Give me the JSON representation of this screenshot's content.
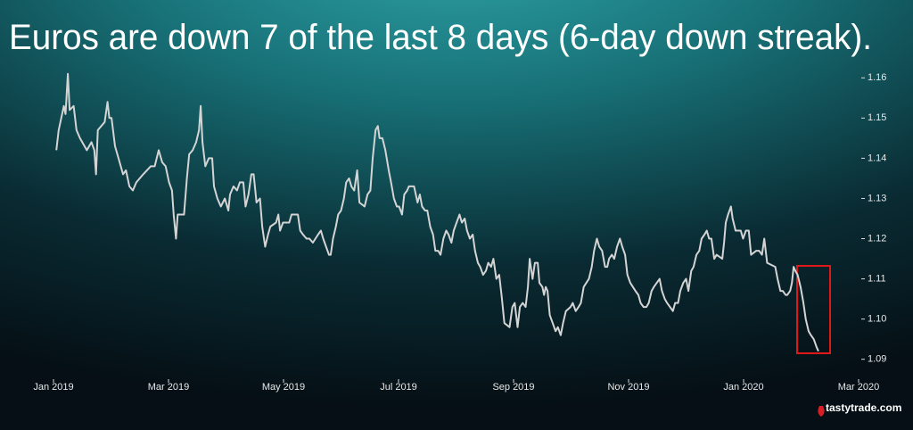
{
  "chart_data": {
    "type": "line",
    "title": "Euros are down 7 of the last 8 days (6-day down streak).",
    "logo": "tastytrade.com",
    "color": "#d4d4d4",
    "xlim": [
      0,
      14
    ],
    "xticks": [
      {
        "value": 0,
        "label": "Jan 2019"
      },
      {
        "value": 2,
        "label": "Mar 2019"
      },
      {
        "value": 4,
        "label": "May 2019"
      },
      {
        "value": 6,
        "label": "Jul 2019"
      },
      {
        "value": 8,
        "label": "Sep 2019"
      },
      {
        "value": 10,
        "label": "Nov 2019"
      },
      {
        "value": 12,
        "label": "Jan 2020"
      },
      {
        "value": 14,
        "label": "Mar 2020"
      }
    ],
    "ylim": [
      1.0875,
      1.1625
    ],
    "yticks": [
      1.09,
      {
        "value": 1.1,
        "label": "1.10"
      },
      1.11,
      1.12,
      1.13,
      1.14,
      1.15,
      1.16
    ],
    "x": [
      0.05,
      0.09,
      0.18,
      0.21,
      0.25,
      0.28,
      0.35,
      0.4,
      0.46,
      0.58,
      0.66,
      0.71,
      0.74,
      0.77,
      0.89,
      0.94,
      0.97,
      1.01,
      1.07,
      1.13,
      1.21,
      1.26,
      1.32,
      1.38,
      1.44,
      1.56,
      1.69,
      1.76,
      1.83,
      1.89,
      1.95,
      2.01,
      2.06,
      2.09,
      2.13,
      2.16,
      2.27,
      2.32,
      2.36,
      2.42,
      2.48,
      2.53,
      2.56,
      2.59,
      2.64,
      2.7,
      2.76,
      2.79,
      2.85,
      2.91,
      2.98,
      3.04,
      3.07,
      3.13,
      3.19,
      3.24,
      3.3,
      3.34,
      3.39,
      3.44,
      3.48,
      3.53,
      3.59,
      3.63,
      3.68,
      3.73,
      3.77,
      3.87,
      3.91,
      3.94,
      3.99,
      4.1,
      4.14,
      4.25,
      4.29,
      4.34,
      4.4,
      4.45,
      4.51,
      4.6,
      4.65,
      4.69,
      4.74,
      4.79,
      4.82,
      4.86,
      4.91,
      4.95,
      5.0,
      5.05,
      5.09,
      5.14,
      5.18,
      5.23,
      5.28,
      5.32,
      5.41,
      5.46,
      5.51,
      5.55,
      5.6,
      5.64,
      5.67,
      5.72,
      5.77,
      5.83,
      5.87,
      5.92,
      5.97,
      6.01,
      6.06,
      6.1,
      6.15,
      6.18,
      6.27,
      6.33,
      6.37,
      6.41,
      6.46,
      6.5,
      6.55,
      6.6,
      6.64,
      6.69,
      6.73,
      6.78,
      6.83,
      6.87,
      6.92,
      6.96,
      7.01,
      7.06,
      7.1,
      7.15,
      7.19,
      7.24,
      7.29,
      7.33,
      7.38,
      7.42,
      7.47,
      7.52,
      7.56,
      7.61,
      7.65,
      7.7,
      7.75,
      7.79,
      7.84,
      7.93,
      7.98,
      8.02,
      8.07,
      8.11,
      8.16,
      8.21,
      8.25,
      8.28,
      8.33,
      8.37,
      8.42,
      8.45,
      8.5,
      8.53,
      8.56,
      8.59,
      8.63,
      8.68,
      8.73,
      8.77,
      8.82,
      8.86,
      8.91,
      8.99,
      9.03,
      9.08,
      9.13,
      9.17,
      9.22,
      9.31,
      9.36,
      9.4,
      9.45,
      9.49,
      9.54,
      9.59,
      9.63,
      9.66,
      9.71,
      9.75,
      9.8,
      9.85,
      9.89,
      9.94,
      9.98,
      10.03,
      10.12,
      10.17,
      10.21,
      10.26,
      10.31,
      10.35,
      10.4,
      10.44,
      10.54,
      10.58,
      10.63,
      10.67,
      10.77,
      10.81,
      10.86,
      10.9,
      10.95,
      11.0,
      11.04,
      11.09,
      11.13,
      11.18,
      11.23,
      11.27,
      11.32,
      11.36,
      11.4,
      11.44,
      11.49,
      11.53,
      11.63,
      11.66,
      11.69,
      11.73,
      11.78,
      11.81,
      11.86,
      11.95,
      11.99,
      12.04,
      12.09,
      12.13,
      12.22,
      12.27,
      12.32,
      12.36,
      12.41,
      12.55,
      12.59,
      12.64,
      12.68,
      12.73,
      12.76,
      12.81,
      12.84,
      12.87,
      12.9,
      12.94,
      12.99,
      13.04,
      13.08,
      13.13,
      13.17,
      13.22,
      13.27,
      13.3
    ],
    "values": [
      1.142,
      1.147,
      1.153,
      1.151,
      1.161,
      1.152,
      1.153,
      1.147,
      1.145,
      1.142,
      1.144,
      1.142,
      1.136,
      1.147,
      1.149,
      1.154,
      1.15,
      1.15,
      1.143,
      1.14,
      1.136,
      1.137,
      1.133,
      1.132,
      1.134,
      1.136,
      1.138,
      1.138,
      1.142,
      1.139,
      1.138,
      1.134,
      1.132,
      1.126,
      1.12,
      1.126,
      1.126,
      1.135,
      1.141,
      1.142,
      1.144,
      1.147,
      1.153,
      1.144,
      1.138,
      1.14,
      1.14,
      1.133,
      1.13,
      1.128,
      1.13,
      1.127,
      1.131,
      1.133,
      1.132,
      1.134,
      1.134,
      1.128,
      1.131,
      1.136,
      1.136,
      1.129,
      1.13,
      1.123,
      1.118,
      1.121,
      1.123,
      1.124,
      1.126,
      1.122,
      1.124,
      1.124,
      1.126,
      1.126,
      1.122,
      1.121,
      1.12,
      1.12,
      1.119,
      1.121,
      1.122,
      1.12,
      1.118,
      1.116,
      1.116,
      1.12,
      1.123,
      1.126,
      1.127,
      1.13,
      1.134,
      1.135,
      1.133,
      1.132,
      1.137,
      1.129,
      1.128,
      1.131,
      1.132,
      1.14,
      1.147,
      1.148,
      1.145,
      1.145,
      1.142,
      1.137,
      1.134,
      1.13,
      1.128,
      1.128,
      1.126,
      1.131,
      1.132,
      1.133,
      1.133,
      1.129,
      1.131,
      1.128,
      1.127,
      1.127,
      1.123,
      1.121,
      1.117,
      1.117,
      1.116,
      1.12,
      1.122,
      1.121,
      1.119,
      1.122,
      1.124,
      1.126,
      1.124,
      1.125,
      1.122,
      1.12,
      1.121,
      1.117,
      1.114,
      1.113,
      1.111,
      1.112,
      1.114,
      1.113,
      1.115,
      1.11,
      1.111,
      1.106,
      1.099,
      1.098,
      1.103,
      1.104,
      1.098,
      1.103,
      1.104,
      1.103,
      1.108,
      1.115,
      1.11,
      1.114,
      1.114,
      1.109,
      1.108,
      1.106,
      1.108,
      1.107,
      1.101,
      1.099,
      1.097,
      1.098,
      1.096,
      1.099,
      1.102,
      1.103,
      1.104,
      1.102,
      1.103,
      1.104,
      1.108,
      1.11,
      1.113,
      1.117,
      1.12,
      1.118,
      1.117,
      1.113,
      1.113,
      1.115,
      1.116,
      1.115,
      1.118,
      1.12,
      1.118,
      1.116,
      1.111,
      1.109,
      1.107,
      1.106,
      1.104,
      1.103,
      1.103,
      1.104,
      1.107,
      1.108,
      1.11,
      1.107,
      1.105,
      1.104,
      1.102,
      1.104,
      1.104,
      1.107,
      1.109,
      1.11,
      1.107,
      1.112,
      1.113,
      1.116,
      1.117,
      1.12,
      1.121,
      1.122,
      1.12,
      1.12,
      1.115,
      1.116,
      1.115,
      1.119,
      1.124,
      1.126,
      1.128,
      1.125,
      1.122,
      1.122,
      1.12,
      1.122,
      1.122,
      1.116,
      1.117,
      1.117,
      1.116,
      1.12,
      1.114,
      1.113,
      1.11,
      1.107,
      1.107,
      1.106,
      1.106,
      1.107,
      1.109,
      1.113,
      1.112,
      1.111,
      1.108,
      1.104,
      1.1,
      1.097,
      1.096,
      1.095,
      1.093,
      1.092
    ]
  }
}
